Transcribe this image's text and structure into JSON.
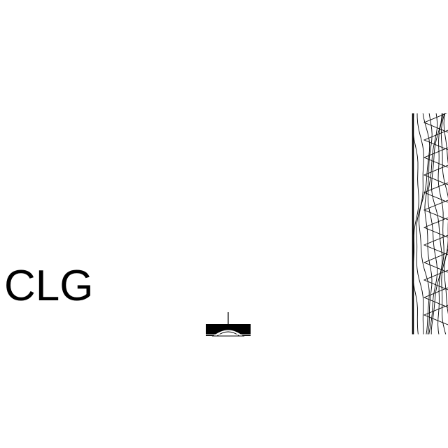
{
  "drawing": {
    "ceiling_label": "CLG",
    "line_color": "#000000",
    "background_color": "#ffffff",
    "symbols": {
      "fixture_icon": "ceiling-fixture-icon",
      "wall_section": "wood-grain-wall-section"
    }
  }
}
